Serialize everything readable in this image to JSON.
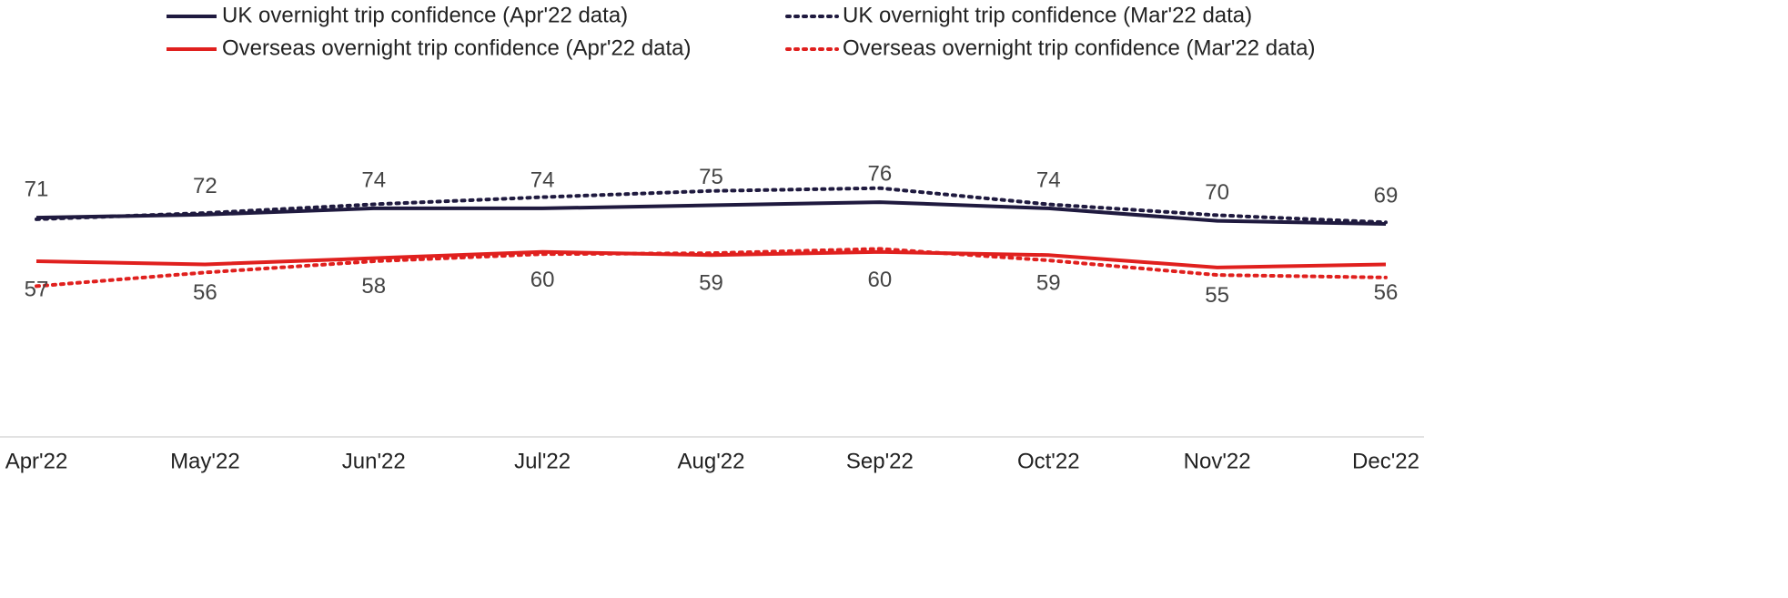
{
  "chart_data": {
    "type": "line",
    "categories": [
      "Apr'22",
      "May'22",
      "Jun'22",
      "Jul'22",
      "Aug'22",
      "Sep'22",
      "Oct'22",
      "Nov'22",
      "Dec'22"
    ],
    "ylim": [
      0,
      100
    ],
    "series": [
      {
        "name": "UK overnight trip confidence (Apr'22 data)",
        "color": "#1f1a3f",
        "line_style": "solid",
        "show_labels": true,
        "label_position": "above",
        "values": [
          71,
          72,
          74,
          74,
          75,
          76,
          74,
          70,
          69
        ]
      },
      {
        "name": "UK overnight trip confidence (Mar'22 data)",
        "color": "#1f1a3f",
        "line_style": "dotted",
        "show_labels": false,
        "values": [
          70.5,
          72.5,
          75.3,
          77.6,
          79.6,
          80.5,
          75.3,
          71.8,
          69.5
        ]
      },
      {
        "name": "Overseas overnight trip confidence (Apr'22 data)",
        "color": "#e0201e",
        "line_style": "solid",
        "show_labels": true,
        "label_position": "below",
        "values": [
          57,
          56,
          58,
          60,
          59,
          60,
          59,
          55,
          56
        ]
      },
      {
        "name": "Overseas overnight trip confidence (Mar'22 data)",
        "color": "#e0201e",
        "line_style": "dotted",
        "show_labels": false,
        "values": [
          49,
          53.4,
          57,
          59.3,
          59.6,
          61,
          57.3,
          52.6,
          51.8
        ]
      }
    ]
  }
}
